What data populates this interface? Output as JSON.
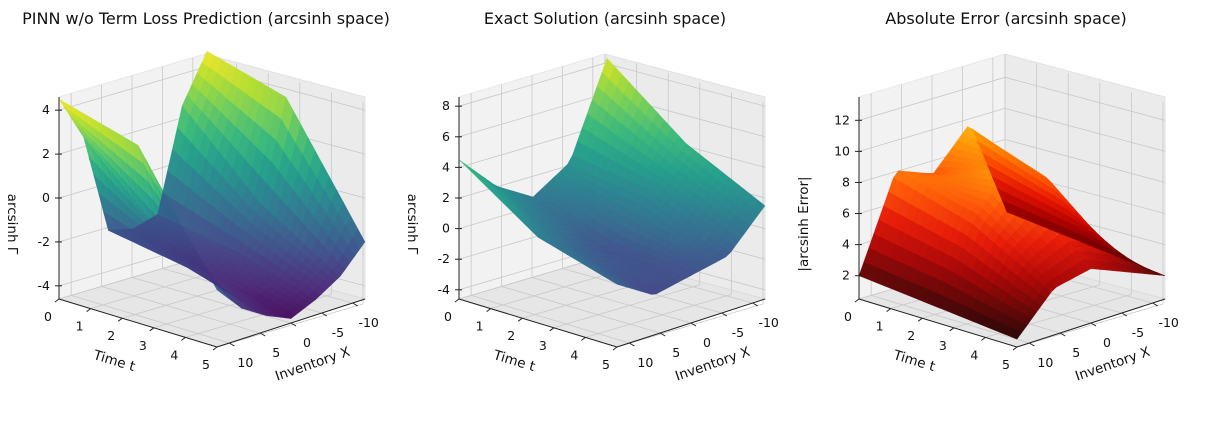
{
  "chart_data": [
    {
      "type": "surface3d",
      "title": "PINN w/o Term Loss Prediction (arcsinh space)",
      "xlabel": "Time t",
      "ylabel": "Inventory X",
      "zlabel": "arcsinh Γ",
      "t_ticks": [
        0,
        1,
        2,
        3,
        4,
        5
      ],
      "x_ticks": [
        10,
        5,
        0,
        -5,
        -10
      ],
      "z_ticks": [
        -4,
        -2,
        0,
        2,
        4
      ],
      "xlim": [
        0,
        5
      ],
      "ylim": [
        -12,
        12
      ],
      "zlim": [
        -4.6,
        4.6
      ],
      "colormap": "viridis",
      "points": [
        {
          "t": 0,
          "x": 12,
          "z": 4.5
        },
        {
          "t": 0,
          "x": 8,
          "z": 2.4
        },
        {
          "t": 0,
          "x": 4,
          "z": -2.2
        },
        {
          "t": 0,
          "x": 0,
          "z": -2.5
        },
        {
          "t": 0,
          "x": -4,
          "z": -2.2
        },
        {
          "t": 0,
          "x": -8,
          "z": 2.4
        },
        {
          "t": 0,
          "x": -12,
          "z": 4.5
        },
        {
          "t": 2.5,
          "x": 12,
          "z": 3.5
        },
        {
          "t": 2.5,
          "x": 8,
          "z": -1.0
        },
        {
          "t": 2.5,
          "x": 4,
          "z": -2.8
        },
        {
          "t": 2.5,
          "x": 0,
          "z": -3.4
        },
        {
          "t": 2.5,
          "x": -4,
          "z": -2.8
        },
        {
          "t": 2.5,
          "x": -8,
          "z": -1.0
        },
        {
          "t": 2.5,
          "x": -12,
          "z": 3.5
        },
        {
          "t": 5,
          "x": 12,
          "z": -2.0
        },
        {
          "t": 5,
          "x": 8,
          "z": -3.2
        },
        {
          "t": 5,
          "x": 4,
          "z": -3.9
        },
        {
          "t": 5,
          "x": 0,
          "z": -4.4
        },
        {
          "t": 5,
          "x": -4,
          "z": -3.9
        },
        {
          "t": 5,
          "x": -8,
          "z": -3.2
        },
        {
          "t": 5,
          "x": -12,
          "z": -2.0
        }
      ]
    },
    {
      "type": "surface3d",
      "title": "Exact Solution (arcsinh space)",
      "xlabel": "Time t",
      "ylabel": "Inventory X",
      "zlabel": "arcsinh Γ",
      "t_ticks": [
        0,
        1,
        2,
        3,
        4,
        5
      ],
      "x_ticks": [
        10,
        5,
        0,
        -5,
        -10
      ],
      "z_ticks": [
        -4,
        -2,
        0,
        2,
        4,
        6,
        8
      ],
      "xlim": [
        0,
        5
      ],
      "ylim": [
        -12,
        12
      ],
      "zlim": [
        -4.6,
        8.6
      ],
      "colormap": "viridis",
      "points": [
        {
          "t": 0,
          "x": 12,
          "z": 4.5
        },
        {
          "t": 0,
          "x": 6,
          "z": 2.0
        },
        {
          "t": 0,
          "x": 0,
          "z": 0.5
        },
        {
          "t": 0,
          "x": -6,
          "z": 2.0
        },
        {
          "t": 0,
          "x": -12,
          "z": 8.0
        },
        {
          "t": 2.5,
          "x": 12,
          "z": 1.0
        },
        {
          "t": 2.5,
          "x": 6,
          "z": -0.5
        },
        {
          "t": 2.5,
          "x": 0,
          "z": -1.5
        },
        {
          "t": 2.5,
          "x": -6,
          "z": 1.5
        },
        {
          "t": 2.5,
          "x": -12,
          "z": 4.0
        },
        {
          "t": 5,
          "x": 12,
          "z": -0.5
        },
        {
          "t": 5,
          "x": 6,
          "z": -2.0
        },
        {
          "t": 5,
          "x": 0,
          "z": -1.5
        },
        {
          "t": 5,
          "x": -6,
          "z": -1.0
        },
        {
          "t": 5,
          "x": -12,
          "z": 1.5
        }
      ]
    },
    {
      "type": "surface3d",
      "title": "Absolute Error (arcsinh space)",
      "xlabel": "Time t",
      "ylabel": "Inventory X",
      "zlabel": "|arcsinh Error|",
      "t_ticks": [
        0,
        1,
        2,
        3,
        4,
        5
      ],
      "x_ticks": [
        10,
        5,
        0,
        -5,
        -10
      ],
      "z_ticks": [
        2,
        4,
        6,
        8,
        10,
        12
      ],
      "xlim": [
        0,
        5
      ],
      "ylim": [
        -12,
        12
      ],
      "zlim": [
        0.5,
        13.5
      ],
      "colormap": "hot",
      "points": [
        {
          "t": 0,
          "x": 12,
          "z": 2.0
        },
        {
          "t": 0,
          "x": 6,
          "z": 8.0
        },
        {
          "t": 0,
          "x": 0,
          "z": 7.0
        },
        {
          "t": 0,
          "x": -6,
          "z": 9.5
        },
        {
          "t": 0,
          "x": -12,
          "z": 3.0
        },
        {
          "t": 2.5,
          "x": 12,
          "z": 1.5
        },
        {
          "t": 2.5,
          "x": 6,
          "z": 6.5
        },
        {
          "t": 2.5,
          "x": 0,
          "z": 9.0
        },
        {
          "t": 2.5,
          "x": -6,
          "z": 7.5
        },
        {
          "t": 2.5,
          "x": -12,
          "z": 2.5
        },
        {
          "t": 5,
          "x": 12,
          "z": 1.0
        },
        {
          "t": 5,
          "x": 6,
          "z": 3.5
        },
        {
          "t": 5,
          "x": 0,
          "z": 4.0
        },
        {
          "t": 5,
          "x": -6,
          "z": 3.0
        },
        {
          "t": 5,
          "x": -12,
          "z": 2.0
        }
      ]
    }
  ]
}
